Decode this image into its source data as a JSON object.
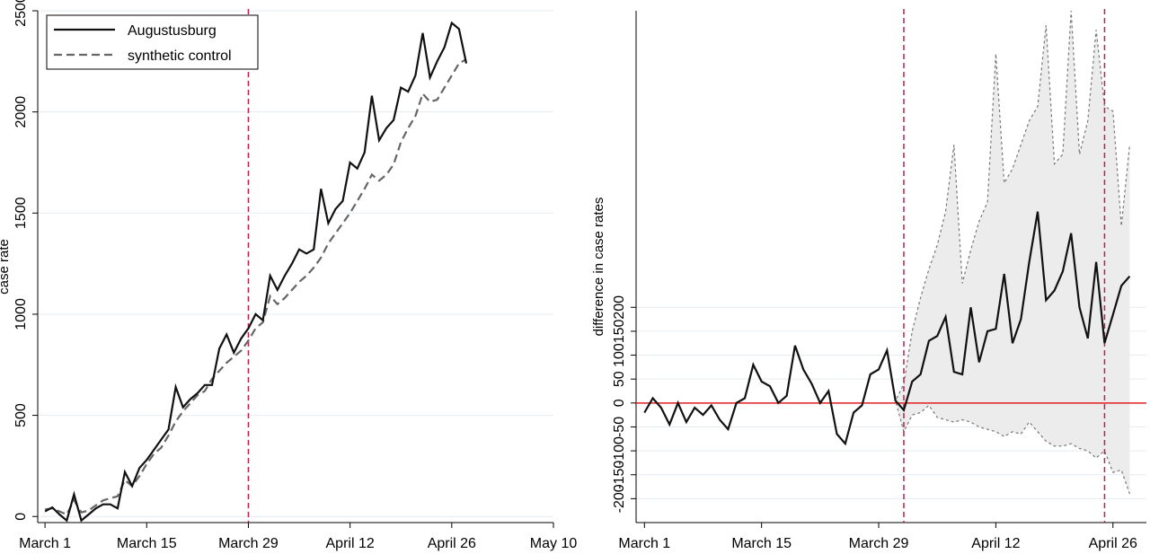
{
  "chart_data": [
    {
      "type": "line",
      "title": "",
      "xlabel": "",
      "ylabel": "case rate",
      "x_ticks": [
        "March 1",
        "March 15",
        "March 29",
        "April 12",
        "April 26",
        "May 10"
      ],
      "y_ticks": [
        "0",
        "500",
        "1000",
        "1500",
        "2000",
        "2500"
      ],
      "ylim": [
        -30,
        2500
      ],
      "xlim": [
        -1,
        70
      ],
      "grid": "horizontal",
      "legend": {
        "position": "top-left"
      },
      "reference_line": {
        "x": 28,
        "style": "dashed",
        "color": "#c0204a"
      },
      "x": [
        0,
        1,
        2,
        3,
        4,
        5,
        6,
        7,
        8,
        9,
        10,
        11,
        12,
        13,
        14,
        15,
        16,
        17,
        18,
        19,
        20,
        21,
        22,
        23,
        24,
        25,
        26,
        27,
        28,
        29,
        30,
        31,
        32,
        33,
        34,
        35,
        36,
        37,
        38,
        39,
        40,
        41,
        42,
        43,
        44,
        45,
        46,
        47,
        48,
        49,
        50,
        51,
        52,
        53,
        54,
        55,
        56,
        57,
        58
      ],
      "series": [
        {
          "name": "Augustusburg",
          "style": "solid",
          "values": [
            25,
            45,
            10,
            -20,
            110,
            -20,
            10,
            40,
            60,
            60,
            40,
            220,
            150,
            240,
            280,
            330,
            380,
            430,
            640,
            540,
            580,
            610,
            650,
            650,
            830,
            900,
            810,
            880,
            930,
            1000,
            970,
            1190,
            1120,
            1190,
            1250,
            1320,
            1300,
            1320,
            1620,
            1450,
            1520,
            1560,
            1750,
            1720,
            1800,
            2080,
            1860,
            1920,
            1960,
            2120,
            2100,
            2180,
            2390,
            2170,
            2250,
            2320,
            2440,
            2410,
            2240
          ]
        },
        {
          "name": "synthetic control",
          "style": "dashed",
          "values": [
            35,
            40,
            25,
            10,
            80,
            20,
            30,
            55,
            80,
            90,
            100,
            180,
            150,
            200,
            260,
            310,
            340,
            400,
            470,
            520,
            560,
            600,
            620,
            680,
            720,
            760,
            790,
            820,
            870,
            930,
            960,
            1090,
            1050,
            1080,
            1120,
            1160,
            1190,
            1230,
            1280,
            1350,
            1400,
            1450,
            1500,
            1560,
            1620,
            1690,
            1660,
            1690,
            1740,
            1850,
            1920,
            1980,
            2090,
            2050,
            2060,
            2120,
            2180,
            2240,
            2260
          ]
        }
      ]
    },
    {
      "type": "area",
      "title": "",
      "xlabel": "",
      "ylabel": "difference in case rates",
      "x_ticks": [
        "March 1",
        "March 15",
        "March 29",
        "April 12",
        "April 26"
      ],
      "y_ticks": [
        "-200",
        "-150",
        "-100",
        "-50",
        "0",
        "50",
        "100",
        "150",
        "200"
      ],
      "ylim": [
        -250,
        820
      ],
      "xlim": [
        -1,
        60
      ],
      "grid": "horizontal",
      "reference_lines": [
        {
          "axis": "y",
          "value": 0,
          "style": "solid",
          "color": "#e02020"
        },
        {
          "axis": "x",
          "value": 31,
          "style": "dashed",
          "color": "#c0204a"
        },
        {
          "axis": "x",
          "value": 55,
          "style": "dashed",
          "color": "#c0204a"
        }
      ],
      "x": [
        0,
        1,
        2,
        3,
        4,
        5,
        6,
        7,
        8,
        9,
        10,
        11,
        12,
        13,
        14,
        15,
        16,
        17,
        18,
        19,
        20,
        21,
        22,
        23,
        24,
        25,
        26,
        27,
        28,
        29,
        30,
        31,
        32,
        33,
        34,
        35,
        36,
        37,
        38,
        39,
        40,
        41,
        42,
        43,
        44,
        45,
        46,
        47,
        48,
        49,
        50,
        51,
        52,
        53,
        54,
        55,
        56,
        57,
        58
      ],
      "series": [
        {
          "name": "",
          "style": "solid",
          "values": [
            -20,
            10,
            -10,
            -45,
            0,
            -40,
            -10,
            -25,
            -5,
            -35,
            -55,
            0,
            10,
            80,
            45,
            35,
            0,
            15,
            120,
            70,
            40,
            0,
            25,
            -65,
            -85,
            -20,
            -5,
            60,
            70,
            110,
            5,
            -15,
            45,
            60,
            130,
            140,
            180,
            65,
            60,
            200,
            85,
            150,
            155,
            270,
            125,
            175,
            295,
            400,
            215,
            235,
            275,
            355,
            200,
            135,
            295,
            125,
            185,
            245,
            265
          ]
        },
        {
          "name": "",
          "style": "dashed-band-upper",
          "values": [
            -20,
            10,
            -10,
            -45,
            0,
            -40,
            -10,
            -25,
            -5,
            -35,
            -55,
            0,
            10,
            80,
            45,
            35,
            0,
            15,
            120,
            70,
            40,
            0,
            25,
            -65,
            -85,
            -20,
            -5,
            60,
            70,
            110,
            5,
            40,
            150,
            220,
            280,
            330,
            400,
            540,
            250,
            320,
            380,
            420,
            730,
            460,
            490,
            540,
            590,
            620,
            790,
            500,
            520,
            820,
            520,
            590,
            780,
            620,
            610,
            370,
            540
          ]
        },
        {
          "name": "",
          "style": "dashed-band-lower",
          "values": [
            -20,
            10,
            -10,
            -45,
            0,
            -40,
            -10,
            -25,
            -5,
            -35,
            -55,
            0,
            10,
            80,
            45,
            35,
            0,
            15,
            120,
            70,
            40,
            0,
            25,
            -65,
            -85,
            -20,
            -5,
            60,
            70,
            110,
            5,
            -60,
            -25,
            -20,
            -5,
            -30,
            -35,
            -40,
            -35,
            -40,
            -50,
            -55,
            -60,
            -70,
            -60,
            -65,
            -40,
            -60,
            -80,
            -90,
            -90,
            -85,
            -95,
            -100,
            -115,
            -100,
            -145,
            -140,
            -190
          ]
        }
      ]
    }
  ]
}
